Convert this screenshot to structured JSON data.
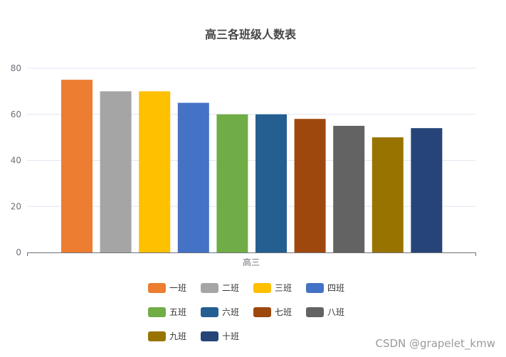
{
  "chart_data": {
    "type": "bar",
    "title": "高三各班级人数表",
    "categories": [
      "高三"
    ],
    "series": [
      {
        "name": "一班",
        "values": [
          75
        ],
        "color": "#ed7d31"
      },
      {
        "name": "二班",
        "values": [
          70
        ],
        "color": "#a5a5a5"
      },
      {
        "name": "三班",
        "values": [
          70
        ],
        "color": "#ffc000"
      },
      {
        "name": "四班",
        "values": [
          65
        ],
        "color": "#4472c4"
      },
      {
        "name": "五班",
        "values": [
          60
        ],
        "color": "#70ad47"
      },
      {
        "name": "六班",
        "values": [
          60
        ],
        "color": "#255e91"
      },
      {
        "name": "七班",
        "values": [
          58
        ],
        "color": "#9e480e"
      },
      {
        "name": "八班",
        "values": [
          55
        ],
        "color": "#636363"
      },
      {
        "name": "九班",
        "values": [
          50
        ],
        "color": "#997300"
      },
      {
        "name": "十班",
        "values": [
          54
        ],
        "color": "#264478"
      }
    ],
    "yticks": [
      0,
      20,
      40,
      60,
      80
    ],
    "ylim": [
      0,
      80
    ],
    "grid": true,
    "legend_position": "bottom"
  },
  "watermark": "CSDN @grapelet_kmw"
}
